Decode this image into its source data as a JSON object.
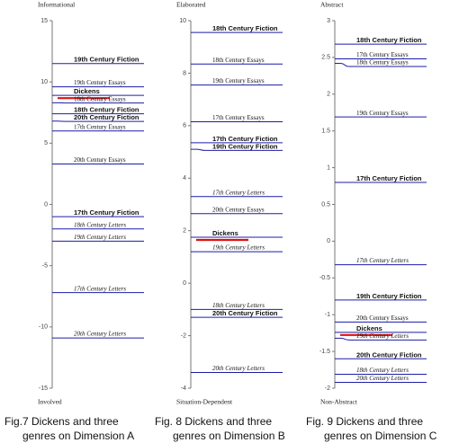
{
  "chart_data": [
    {
      "type": "scale",
      "top_label": "Informational",
      "bottom_label": "Involved",
      "ylim": [
        -15,
        15
      ],
      "yticks": [
        -15,
        -10,
        -5,
        0,
        5,
        10,
        15
      ],
      "color": "#1c1ca8",
      "caption": [
        "Fig.7 Dickens and three",
        "genres on Dimension A"
      ],
      "items": [
        {
          "name": "19th Century Fiction",
          "value": 11.5,
          "style": "bold"
        },
        {
          "name": "19th Century Essays",
          "value": 9.6,
          "style": "regular"
        },
        {
          "name": "Dickens",
          "value": 8.9,
          "style": "bold",
          "highlight": "#e01010"
        },
        {
          "name": "18th Century Essays",
          "value": 8.3,
          "style": "regular"
        },
        {
          "name": "18th Century Fiction",
          "value": 7.4,
          "style": "bold"
        },
        {
          "name": "20th Century Fiction",
          "value": 6.8,
          "style": "bold"
        },
        {
          "name": "17th Century Essays",
          "value": 6.0,
          "style": "regular"
        },
        {
          "name": "20th Century Essays",
          "value": 3.3,
          "style": "regular"
        },
        {
          "name": "17th Century Fiction",
          "value": -1.0,
          "style": "bold"
        },
        {
          "name": "18th Century Letters",
          "value": -2.0,
          "style": "italic"
        },
        {
          "name": "19th Century Letters",
          "value": -3.0,
          "style": "italic"
        },
        {
          "name": "17th Century Letters",
          "value": -7.2,
          "style": "italic"
        },
        {
          "name": "20th Century Letters",
          "value": -10.9,
          "style": "italic"
        }
      ]
    },
    {
      "type": "scale",
      "top_label": "Elaborated",
      "bottom_label": "Situation-Dependent",
      "ylim": [
        -4,
        10
      ],
      "yticks": [
        -4,
        -2,
        0,
        2,
        4,
        6,
        8,
        10
      ],
      "color": "#1c1ca8",
      "caption": [
        "Fig. 8 Dickens and three",
        "genres on Dimension B"
      ],
      "items": [
        {
          "name": "18th Century Fiction",
          "value": 9.55,
          "style": "bold"
        },
        {
          "name": "18th Century Essays",
          "value": 8.35,
          "style": "regular"
        },
        {
          "name": "19th Century Essays",
          "value": 7.55,
          "style": "regular"
        },
        {
          "name": "17th Century Essays",
          "value": 6.15,
          "style": "regular"
        },
        {
          "name": "17th Century Fiction",
          "value": 5.35,
          "style": "bold"
        },
        {
          "name": "19th Century Fiction",
          "value": 5.1,
          "style": "bold"
        },
        {
          "name": "17th Century Letters",
          "value": 3.3,
          "style": "italic"
        },
        {
          "name": "20th Century Essays",
          "value": 2.65,
          "style": "regular"
        },
        {
          "name": "Dickens",
          "value": 1.75,
          "style": "bold",
          "highlight": "#e01010"
        },
        {
          "name": "19th Century Letters",
          "value": 1.2,
          "style": "italic"
        },
        {
          "name": "18th Century Letters",
          "value": -1.0,
          "style": "italic"
        },
        {
          "name": "20th Century Fiction",
          "value": -1.3,
          "style": "bold"
        },
        {
          "name": "20th Century Letters",
          "value": -3.4,
          "style": "italic"
        }
      ]
    },
    {
      "type": "scale",
      "top_label": "Abstract",
      "bottom_label": "Non-Abstract",
      "ylim": [
        -2,
        3
      ],
      "yticks": [
        -2,
        -1.5,
        -1,
        -0.5,
        0,
        0.5,
        1,
        1.5,
        2,
        2.5,
        3
      ],
      "color": "#1c1ca8",
      "caption": [
        "Fig. 9 Dickens and three",
        "genres on Dimension C"
      ],
      "items": [
        {
          "name": "18th Century Fiction",
          "value": 2.68,
          "style": "bold"
        },
        {
          "name": "17th Century Essays",
          "value": 2.48,
          "style": "regular"
        },
        {
          "name": "18th Century Essays",
          "value": 2.42,
          "style": "regular"
        },
        {
          "name": "19th Century Essays",
          "value": 1.69,
          "style": "regular"
        },
        {
          "name": "17th Century Fiction",
          "value": 0.8,
          "style": "bold"
        },
        {
          "name": "17th Century Letters",
          "value": -0.32,
          "style": "italic"
        },
        {
          "name": "19th Century Fiction",
          "value": -0.8,
          "style": "bold"
        },
        {
          "name": "20th Century Essays",
          "value": -1.1,
          "style": "regular"
        },
        {
          "name": "Dickens",
          "value": -1.24,
          "style": "bold",
          "highlight": "#e01010"
        },
        {
          "name": "19th Century Letters",
          "value": -1.32,
          "style": "italic"
        },
        {
          "name": "20th Century Fiction",
          "value": -1.6,
          "style": "bold"
        },
        {
          "name": "18th Century Letters",
          "value": -1.81,
          "style": "italic"
        },
        {
          "name": "20th Century Letters",
          "value": -1.92,
          "style": "italic"
        }
      ]
    }
  ]
}
